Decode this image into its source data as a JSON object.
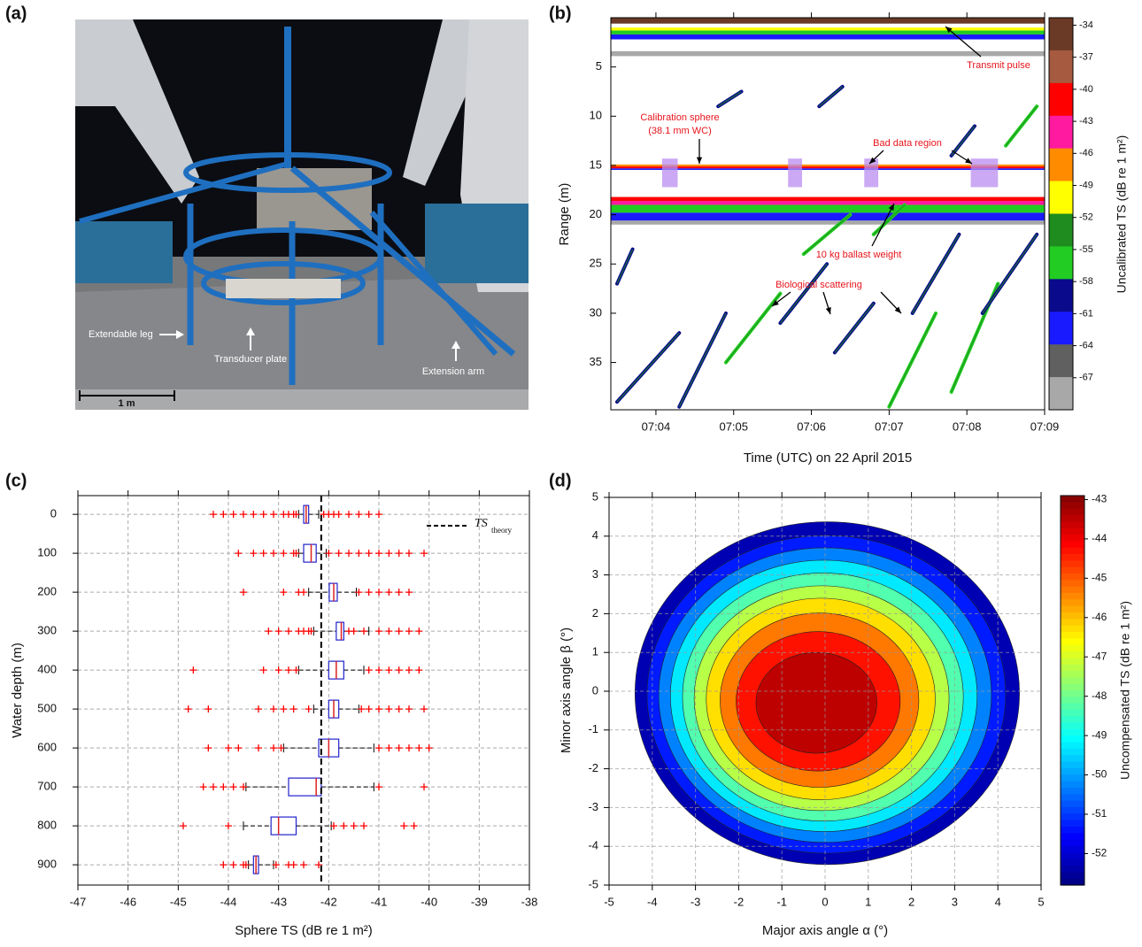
{
  "panel_labels": [
    "(a)",
    "(b)",
    "(c)",
    "(d)"
  ],
  "photo": {
    "callouts": [
      "Extendable leg",
      "Transducer plate",
      "Extension arm"
    ],
    "scale_bar": "1 m"
  },
  "chart_data": [
    {
      "type": "echogram",
      "xlabel": "Time (UTC) on 22 April 2015",
      "ylabel": "Range (m)",
      "xlim": [
        423.42,
        429
      ],
      "xticks": [
        {
          "value": 424,
          "label": "07:04"
        },
        {
          "value": 425,
          "label": "07:05"
        },
        {
          "value": 426,
          "label": "07:06"
        },
        {
          "value": 427,
          "label": "07:07"
        },
        {
          "value": 428,
          "label": "07:08"
        },
        {
          "value": 429,
          "label": "07:09"
        }
      ],
      "ylim": [
        0,
        39.8
      ],
      "yticks": [
        5,
        10,
        15,
        20,
        25,
        30,
        35
      ],
      "bands": [
        {
          "y": [
            0,
            0.6
          ],
          "ts": -34
        },
        {
          "y": [
            1.0,
            1.3
          ],
          "ts": -49
        },
        {
          "y": [
            1.3,
            1.7
          ],
          "ts": -57
        },
        {
          "y": [
            1.7,
            2.2
          ],
          "ts": -62
        },
        {
          "y": [
            3.4,
            3.9
          ],
          "ts": -67
        },
        {
          "y": [
            14.9,
            15.1
          ],
          "ts": -46
        },
        {
          "y": [
            15.1,
            15.3
          ],
          "ts": -40
        },
        {
          "y": [
            15.3,
            15.45
          ],
          "ts": -61
        },
        {
          "y": [
            18.2,
            18.6
          ],
          "ts": -40
        },
        {
          "y": [
            18.6,
            19.0
          ],
          "ts": -43
        },
        {
          "y": [
            19.0,
            19.8
          ],
          "ts": -56
        },
        {
          "y": [
            19.8,
            20.6
          ],
          "ts": -61
        },
        {
          "y": [
            20.6,
            21.0
          ],
          "ts": -67
        }
      ],
      "regions": [
        {
          "x": [
            424.08,
            424.28
          ],
          "y": [
            14.3,
            17.2
          ]
        },
        {
          "x": [
            425.7,
            425.88
          ],
          "y": [
            14.3,
            17.2
          ]
        },
        {
          "x": [
            426.68,
            426.86
          ],
          "y": [
            14.3,
            17.2
          ]
        },
        {
          "x": [
            428.05,
            428.4
          ],
          "y": [
            14.3,
            17.2
          ]
        }
      ],
      "tracks": [
        {
          "x": [
            423.5,
            424.3
          ],
          "y": [
            39,
            32
          ],
          "ts": -60
        },
        {
          "x": [
            423.5,
            423.7
          ],
          "y": [
            27,
            23.5
          ],
          "ts": -60
        },
        {
          "x": [
            424.3,
            424.9
          ],
          "y": [
            39.5,
            30
          ],
          "ts": -60
        },
        {
          "x": [
            424.9,
            425.6
          ],
          "y": [
            35,
            28
          ],
          "ts": -56
        },
        {
          "x": [
            425.6,
            426.2
          ],
          "y": [
            31,
            25
          ],
          "ts": -60
        },
        {
          "x": [
            425.9,
            426.5
          ],
          "y": [
            24,
            20
          ],
          "ts": -56
        },
        {
          "x": [
            426.3,
            426.8
          ],
          "y": [
            34,
            29
          ],
          "ts": -60
        },
        {
          "x": [
            426.1,
            426.4
          ],
          "y": [
            9,
            7
          ],
          "ts": -60
        },
        {
          "x": [
            424.8,
            425.1
          ],
          "y": [
            9,
            7.5
          ],
          "ts": -60
        },
        {
          "x": [
            427.0,
            427.6
          ],
          "y": [
            39.5,
            30
          ],
          "ts": -56
        },
        {
          "x": [
            427.3,
            427.9
          ],
          "y": [
            30,
            22
          ],
          "ts": -60
        },
        {
          "x": [
            427.8,
            428.4
          ],
          "y": [
            38,
            27
          ],
          "ts": -56
        },
        {
          "x": [
            428.2,
            428.9
          ],
          "y": [
            30,
            22
          ],
          "ts": -60
        },
        {
          "x": [
            428.5,
            428.9
          ],
          "y": [
            13,
            9
          ],
          "ts": -56
        },
        {
          "x": [
            427.8,
            428.1
          ],
          "y": [
            14,
            11
          ],
          "ts": -60
        },
        {
          "x": [
            426.8,
            427.2
          ],
          "y": [
            22,
            19
          ],
          "ts": -56
        }
      ],
      "annotations": [
        "Transmit pulse",
        "Calibration sphere",
        "(38.1 mm WC)",
        "Bad data region",
        "10 kg ballast weight",
        "Biological scattering"
      ],
      "colorbar": {
        "label": "Uncalibrated TS (dB re 1 m²)",
        "clim": [
          -70,
          -33.3
        ],
        "ticks": [
          -34,
          -37,
          -40,
          -43,
          -46,
          -49,
          -52,
          -55,
          -58,
          -61,
          -64,
          -67
        ],
        "colors": [
          "#6b3a26",
          "#a65a3f",
          "#ff0000",
          "#ff1aa0",
          "#ff8c00",
          "#ffff00",
          "#1e8c1e",
          "#22cc22",
          "#0a0a8c",
          "#1a1aff",
          "#606060",
          "#a8a8a8"
        ]
      }
    },
    {
      "type": "boxplot",
      "xlabel": "Sphere TS (dB re 1 m²)",
      "ylabel": "Water depth (m)",
      "xlim": [
        -47,
        -38
      ],
      "xticks": [
        -47,
        -46,
        -45,
        -44,
        -43,
        -42,
        -41,
        -40,
        -39,
        -38
      ],
      "ylim": [
        952,
        -48
      ],
      "yticks": [
        0,
        100,
        200,
        300,
        400,
        500,
        600,
        700,
        800,
        900
      ],
      "grid": true,
      "y": [
        0,
        100,
        200,
        300,
        400,
        500,
        600,
        700,
        800,
        900
      ],
      "whisker_low": [
        -42.6,
        -42.6,
        -42.4,
        -42.3,
        -42.6,
        -42.3,
        -42.9,
        -43.65,
        -43.7,
        -43.6
      ],
      "q1": [
        -42.5,
        -42.5,
        -41.99,
        -41.85,
        -42.0,
        -42.0,
        -42.2,
        -42.8,
        -43.15,
        -43.5
      ],
      "median": [
        -42.45,
        -42.35,
        -41.9,
        -41.75,
        -41.85,
        -41.9,
        -42.0,
        -42.25,
        -43.0,
        -43.45
      ],
      "q3": [
        -42.4,
        -42.25,
        -41.83,
        -41.7,
        -41.7,
        -41.8,
        -41.8,
        -42.15,
        -42.65,
        -43.4
      ],
      "whisker_high": [
        -42.2,
        -42.05,
        -41.45,
        -41.2,
        -41.3,
        -41.4,
        -41.1,
        -41.1,
        -41.95,
        -43.1
      ],
      "outliers": [
        [
          -44.3,
          -44.1,
          -43.9,
          -43.7,
          -43.5,
          -43.3,
          -43.1,
          -42.9,
          -42.8,
          -42.7,
          -42.65,
          -42.1,
          -42.0,
          -41.9,
          -41.8,
          -41.6,
          -41.4,
          -41.2,
          -41.0
        ],
        [
          -43.8,
          -43.5,
          -43.3,
          -43.1,
          -42.9,
          -42.7,
          -42.65,
          -42.0,
          -41.8,
          -41.6,
          -41.4,
          -41.2,
          -41.0,
          -40.8,
          -40.6,
          -40.4,
          -40.1
        ],
        [
          -43.7,
          -42.9,
          -42.6,
          -42.5,
          -41.4,
          -41.2,
          -41.0,
          -40.8,
          -40.6,
          -40.4
        ],
        [
          -43.2,
          -43.0,
          -42.8,
          -42.6,
          -42.5,
          -42.4,
          -42.35,
          -41.6,
          -41.5,
          -41.3,
          -41.0,
          -40.8,
          -40.6,
          -40.4,
          -40.2
        ],
        [
          -44.7,
          -43.3,
          -43.0,
          -42.8,
          -42.65,
          -41.2,
          -41.0,
          -40.8,
          -40.6,
          -40.4,
          -40.2
        ],
        [
          -44.8,
          -44.4,
          -43.4,
          -43.1,
          -42.9,
          -42.7,
          -42.4,
          -41.35,
          -41.2,
          -41.0,
          -40.8,
          -40.6,
          -40.4,
          -40.1
        ],
        [
          -44.4,
          -44.0,
          -43.8,
          -43.4,
          -43.1,
          -42.95,
          -41.0,
          -40.8,
          -40.6,
          -40.4,
          -40.2,
          -40.0
        ],
        [
          -44.5,
          -44.3,
          -44.1,
          -43.9,
          -43.7,
          -41.0,
          -40.1
        ],
        [
          -44.9,
          -44.0,
          -41.9,
          -41.7,
          -41.5,
          -41.3,
          -40.5,
          -40.3
        ],
        [
          -44.1,
          -43.9,
          -43.7,
          -43.65,
          -43.05,
          -42.8,
          -42.7,
          -42.5,
          -42.2
        ]
      ],
      "box_color": "#2222cc",
      "median_color": "#dd2222",
      "outlier_color": "#ff0000",
      "reference": {
        "name": "TS",
        "name_subscript": "theory",
        "value": -42.15
      }
    },
    {
      "type": "contour",
      "xlabel": "Major axis angle α (°)",
      "ylabel": "Minor axis angle β (°)",
      "xlim": [
        -5,
        5
      ],
      "xticks": [
        -5,
        -4,
        -3,
        -2,
        -1,
        0,
        1,
        2,
        3,
        4,
        5
      ],
      "ylim": [
        -5,
        5
      ],
      "yticks": [
        -5,
        -4,
        -3,
        -2,
        -1,
        0,
        1,
        2,
        3,
        4,
        5
      ],
      "grid": true,
      "contours": [
        {
          "level": -52.3,
          "x": 0.05,
          "y": -0.05,
          "rx": 4.45,
          "ry": 4.42
        },
        {
          "level": -51.3,
          "x": 0.03,
          "y": -0.08,
          "rx": 4.15,
          "ry": 4.1
        },
        {
          "level": -50.3,
          "x": 0.0,
          "y": -0.1,
          "rx": 3.85,
          "ry": 3.8
        },
        {
          "level": -49.3,
          "x": -0.03,
          "y": -0.12,
          "rx": 3.55,
          "ry": 3.5
        },
        {
          "level": -48.3,
          "x": -0.05,
          "y": -0.15,
          "rx": 3.25,
          "ry": 3.2
        },
        {
          "level": -47.3,
          "x": -0.08,
          "y": -0.18,
          "rx": 2.95,
          "ry": 2.9
        },
        {
          "level": -46.3,
          "x": -0.1,
          "y": -0.2,
          "rx": 2.65,
          "ry": 2.6
        },
        {
          "level": -45.3,
          "x": -0.13,
          "y": -0.23,
          "rx": 2.3,
          "ry": 2.25
        },
        {
          "level": -44.3,
          "x": -0.16,
          "y": -0.26,
          "rx": 1.9,
          "ry": 1.8
        },
        {
          "level": -43.5,
          "x": -0.2,
          "y": -0.3,
          "rx": 1.4,
          "ry": 1.3
        }
      ],
      "colorbar": {
        "label": "Uncompensated TS (dB re 1 m²)",
        "clim": [
          -52.8,
          -42.9
        ],
        "ticks": [
          -43,
          -44,
          -45,
          -46,
          -47,
          -48,
          -49,
          -50,
          -51,
          -52
        ]
      }
    }
  ]
}
